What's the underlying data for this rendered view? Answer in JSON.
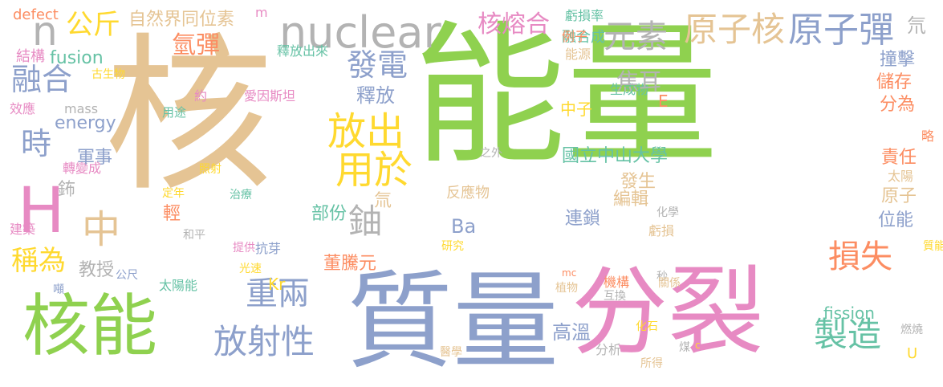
{
  "word_cloud": {
    "colors": {
      "green": "#8fd14f",
      "tan": "#e5c494",
      "blue": "#8da0cb",
      "pink": "#e78ac3",
      "orange": "#fc8d62",
      "teal": "#66c2a5",
      "yellow": "#ffd92f",
      "gray": "#b3b3b3"
    },
    "words": [
      "能量",
      "核",
      "質量",
      "分裂",
      "核能",
      "H",
      "nuclear",
      "原子彈",
      "原子核",
      "元素",
      "核熔合",
      "n",
      "公斤",
      "自然界同位素",
      "defect",
      "m",
      "虧損率",
      "氘",
      "結構",
      "fusion",
      "古生物",
      "效應",
      "mass",
      "energy",
      "約",
      "愛因斯坦",
      "用途",
      "轉變成",
      "照射",
      "鈽",
      "定年",
      "建築",
      "和平",
      "公尺",
      "治療",
      "提供",
      "抗芽",
      "光速",
      "太陽能",
      "噸",
      "氫彈",
      "釋放出來",
      "融合成",
      "例子",
      "能源",
      "生成物",
      "發電",
      "融合",
      "時",
      "稱為",
      "教授",
      "軍事",
      "中",
      "輕",
      "放出",
      "用於",
      "鈾",
      "重兩",
      "放射性",
      "董騰元",
      "Kr",
      "釋放",
      "焦耳",
      "E",
      "中子",
      "國立中山大學",
      "部份",
      "氚",
      "Ba",
      "反應物",
      "之外",
      "發生",
      "編輯",
      "連鎖",
      "研究",
      "化學",
      "秒",
      "虧損",
      "撞擊",
      "儲存",
      "分為",
      "略",
      "責任",
      "太陽",
      "原子",
      "位能",
      "損失",
      "製造",
      "fission",
      "高溫",
      "互換",
      "醫學",
      "化石",
      "分析",
      "煤",
      "c",
      "所得",
      "植物",
      "mc",
      "機構",
      "關係",
      "燃燒",
      "質能",
      "U"
    ]
  }
}
